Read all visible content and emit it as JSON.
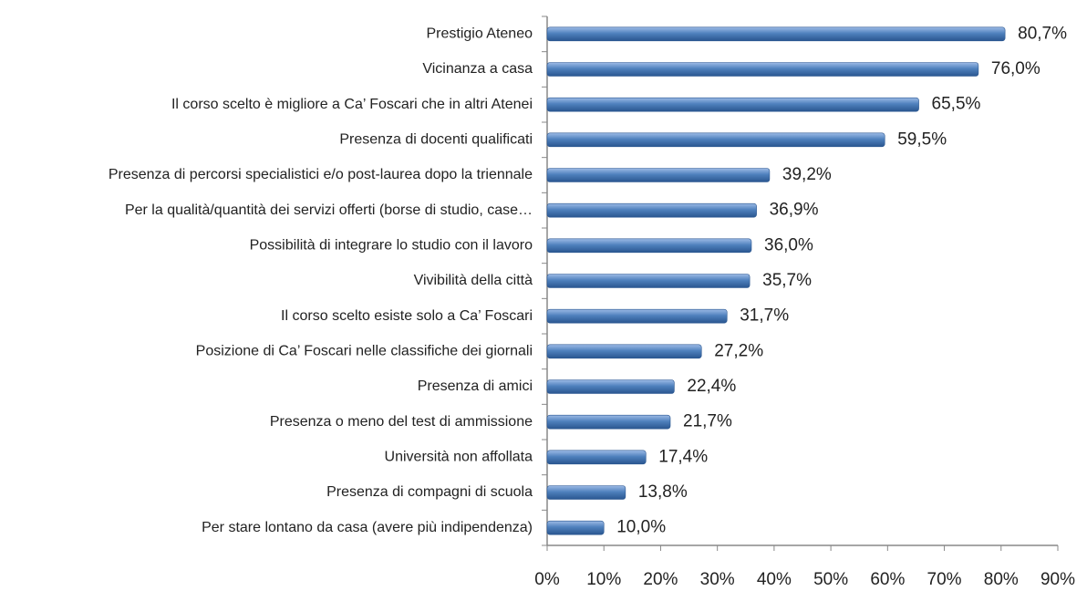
{
  "chart_data": {
    "type": "bar",
    "orientation": "horizontal",
    "categories": [
      "Prestigio Ateneo",
      "Vicinanza a casa",
      "Il corso scelto è migliore a Ca’ Foscari che in altri Atenei",
      "Presenza di docenti qualificati",
      "Presenza di percorsi specialistici e/o post-laurea dopo la triennale",
      "Per la qualità/quantità dei servizi offerti (borse di studio, case…",
      "Possibilità di integrare lo studio con il lavoro",
      "Vivibilità della città",
      "Il corso scelto esiste solo a Ca’ Foscari",
      "Posizione di Ca’ Foscari nelle classifiche dei giornali",
      "Presenza di amici",
      "Presenza o meno del test di ammissione",
      "Università non affollata",
      "Presenza di compagni di scuola",
      "Per stare lontano da casa (avere più indipendenza)"
    ],
    "values": [
      80.7,
      76.0,
      65.5,
      59.5,
      39.2,
      36.9,
      36.0,
      35.7,
      31.7,
      27.2,
      22.4,
      21.7,
      17.4,
      13.8,
      10.0
    ],
    "value_labels": [
      "80,7%",
      "76,0%",
      "65,5%",
      "59,5%",
      "39,2%",
      "36,9%",
      "36,0%",
      "35,7%",
      "31,7%",
      "27,2%",
      "22,4%",
      "21,7%",
      "17,4%",
      "13,8%",
      "10,0%"
    ],
    "color": "#4a7ebb",
    "xlim": [
      0,
      90
    ],
    "xticks": [
      {
        "value": 0,
        "label": "0%"
      },
      {
        "value": 10,
        "label": "10%"
      },
      {
        "value": 20,
        "label": "20%"
      },
      {
        "value": 30,
        "label": "30%"
      },
      {
        "value": 40,
        "label": "40%"
      },
      {
        "value": 50,
        "label": "50%"
      },
      {
        "value": 60,
        "label": "60%"
      },
      {
        "value": 70,
        "label": "70%"
      },
      {
        "value": 80,
        "label": "80%"
      },
      {
        "value": 90,
        "label": "90%"
      }
    ],
    "grid": false
  }
}
